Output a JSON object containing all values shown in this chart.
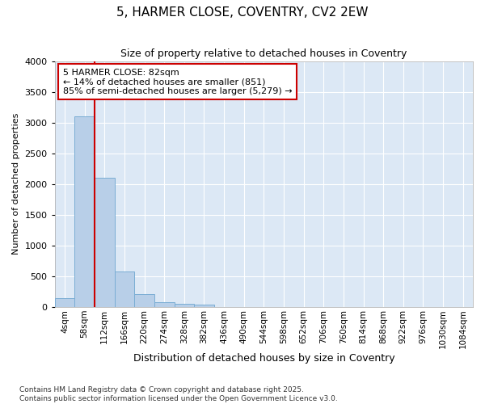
{
  "title": "5, HARMER CLOSE, COVENTRY, CV2 2EW",
  "subtitle": "Size of property relative to detached houses in Coventry",
  "xlabel": "Distribution of detached houses by size in Coventry",
  "ylabel": "Number of detached properties",
  "bar_color": "#b8cfe8",
  "bar_edge_color": "#7aadd4",
  "background_color": "#dce8f5",
  "grid_color": "#ffffff",
  "categories": [
    "4sqm",
    "58sqm",
    "112sqm",
    "166sqm",
    "220sqm",
    "274sqm",
    "328sqm",
    "382sqm",
    "436sqm",
    "490sqm",
    "544sqm",
    "598sqm",
    "652sqm",
    "706sqm",
    "760sqm",
    "814sqm",
    "868sqm",
    "922sqm",
    "976sqm",
    "1030sqm",
    "1084sqm"
  ],
  "values": [
    150,
    3100,
    2100,
    580,
    210,
    75,
    50,
    35,
    5,
    0,
    0,
    0,
    0,
    0,
    0,
    0,
    0,
    0,
    0,
    0,
    0
  ],
  "ylim": [
    0,
    4000
  ],
  "yticks": [
    0,
    500,
    1000,
    1500,
    2000,
    2500,
    3000,
    3500,
    4000
  ],
  "property_line_x": 1.5,
  "annotation_text": "5 HARMER CLOSE: 82sqm\n← 14% of detached houses are smaller (851)\n85% of semi-detached houses are larger (5,279) →",
  "annotation_box_color": "#ffffff",
  "annotation_box_edge_color": "#cc0000",
  "property_line_color": "#cc0000",
  "footnote": "Contains HM Land Registry data © Crown copyright and database right 2025.\nContains public sector information licensed under the Open Government Licence v3.0.",
  "bar_width": 1.0
}
